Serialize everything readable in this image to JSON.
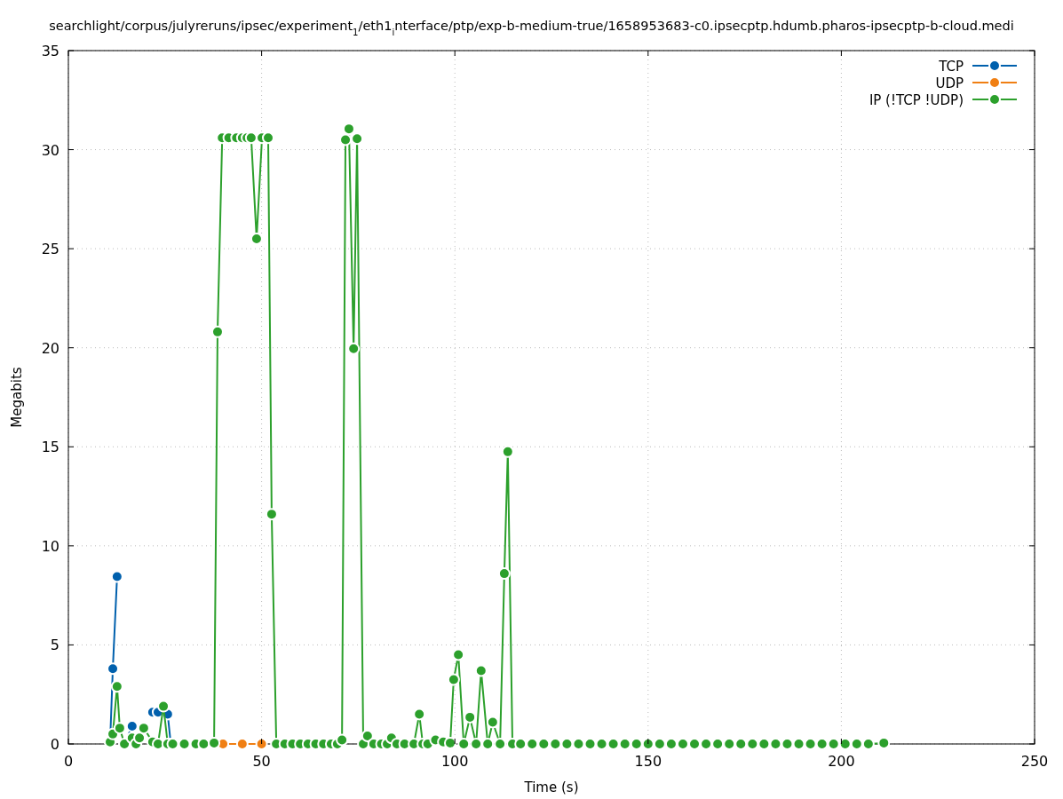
{
  "chart_data": {
    "type": "line",
    "title": "searchlight/corpus/julyreruns/ipsec/experiment$_{1}$/eth1$_{i}$nterface/ptp/exp-b-medium-true/1658953683-c0.ipsecptp.hdumb.pharos-ipsecptp-b-cloud.medi",
    "xlabel": "Time (s)",
    "ylabel": "Megabits",
    "xlim": [
      0,
      250
    ],
    "xticks": [
      0,
      50,
      100,
      150,
      200,
      250
    ],
    "ylim": [
      0,
      35
    ],
    "yticks": [
      0,
      5,
      10,
      15,
      20,
      25,
      30,
      35
    ],
    "grid": true,
    "legend": "top right",
    "marker": "circle",
    "line_style": "solid",
    "series": [
      {
        "name": "TCP",
        "color": "#0060ad",
        "x": [
          10.8,
          11.5,
          12.6,
          13.3,
          14.5,
          16.5,
          17.5,
          18.4,
          19.5,
          21.8,
          23.2,
          24.6,
          25.7,
          26.5
        ],
        "values": [
          0.1,
          3.8,
          8.45,
          null,
          0,
          0.9,
          null,
          null,
          null,
          1.6,
          1.6,
          null,
          1.5,
          0
        ]
      },
      {
        "name": "UDP",
        "color": "#f07f13",
        "x": [
          40,
          45,
          50
        ],
        "values": [
          0,
          0,
          0
        ]
      },
      {
        "name": "IP (!TCP  !UDP)",
        "color": "#2ca02c",
        "x": [
          10.8,
          11.5,
          12.6,
          13.3,
          14.5,
          16.5,
          17.5,
          18.4,
          19.5,
          21.8,
          23.2,
          24.6,
          25.7,
          27,
          30,
          33,
          35,
          37.7,
          38.6,
          39.8,
          41.5,
          43.5,
          45,
          46.2,
          47.3,
          48.7,
          50.1,
          51.7,
          52.6,
          53.8,
          56,
          58,
          60,
          62,
          64,
          66,
          68,
          69.6,
          70.8,
          71.7,
          72.6,
          73.8,
          74.7,
          76.3,
          77.4,
          79,
          81,
          82.5,
          83.6,
          85,
          87,
          89.4,
          90.8,
          91.7,
          93,
          95,
          97,
          98.8,
          99.7,
          100.9,
          102.3,
          103.9,
          105.5,
          106.8,
          108.5,
          109.8,
          111.7,
          112.8,
          113.7,
          114.9,
          117,
          120,
          123,
          126,
          129,
          132,
          135,
          138,
          141,
          144,
          147,
          150,
          153,
          156,
          159,
          162,
          165,
          168,
          171,
          174,
          177,
          180,
          183,
          186,
          189,
          192,
          195,
          198,
          201,
          204,
          207,
          211
        ],
        "values": [
          0.1,
          0.5,
          2.9,
          0.8,
          0,
          0.3,
          0,
          0.3,
          0.8,
          0.1,
          0,
          1.9,
          0,
          0,
          0,
          0,
          0,
          0.05,
          20.8,
          30.6,
          30.6,
          30.6,
          30.6,
          30.6,
          30.6,
          25.5,
          30.6,
          30.6,
          11.6,
          0,
          0,
          0,
          0,
          0,
          0,
          0,
          0,
          0,
          0.2,
          30.5,
          31.05,
          19.95,
          30.55,
          0,
          0.4,
          0,
          0,
          0,
          0.3,
          0,
          0,
          0,
          1.5,
          0,
          0,
          0.2,
          0.1,
          0.05,
          3.25,
          4.5,
          0,
          1.35,
          0,
          3.7,
          0,
          1.1,
          0,
          8.6,
          14.75,
          0,
          0,
          0,
          0,
          0,
          0,
          0,
          0,
          0,
          0,
          0,
          0,
          0,
          0,
          0,
          0,
          0,
          0,
          0,
          0,
          0,
          0,
          0,
          0,
          0,
          0,
          0,
          0,
          0,
          0,
          0,
          0,
          0.05
        ]
      }
    ]
  }
}
